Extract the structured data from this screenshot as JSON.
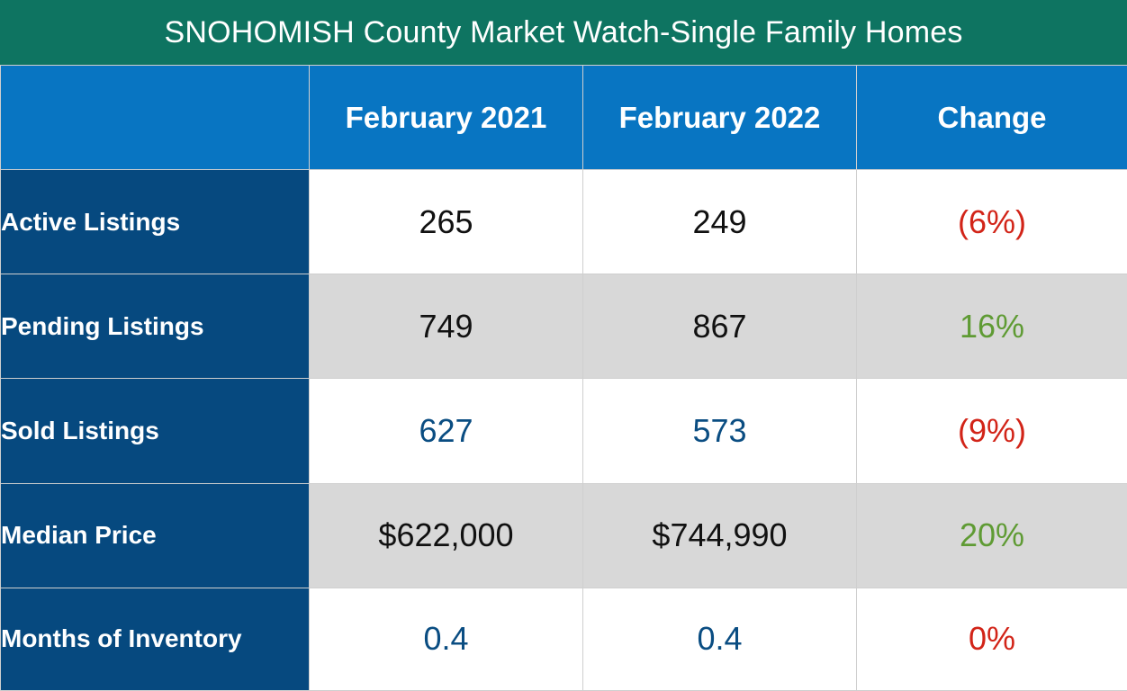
{
  "chart_data": {
    "type": "table",
    "title": "SNOHOMISH County Market Watch-Single Family Homes",
    "columns": [
      "",
      "February 2021",
      "February 2022",
      "Change"
    ],
    "rows": [
      {
        "label": "Active Listings",
        "feb_2021": "265",
        "feb_2022": "249",
        "change": "(6%)"
      },
      {
        "label": "Pending Listings",
        "feb_2021": "749",
        "feb_2022": "867",
        "change": "16%"
      },
      {
        "label": "Sold Listings",
        "feb_2021": "627",
        "feb_2022": "573",
        "change": "(9%)"
      },
      {
        "label": "Median Price",
        "feb_2021": "$622,000",
        "feb_2022": "$744,990",
        "change": "20%"
      },
      {
        "label": "Months of Inventory",
        "feb_2021": "0.4",
        "feb_2022": "0.4",
        "change": "0%"
      }
    ]
  },
  "colors": {
    "title_bg": "#0e7461",
    "header_bg": "#0875c2",
    "row_label_bg": "#06497f",
    "shaded_row": "#d8d8d8",
    "negative": "#d22418",
    "positive": "#5f9b34",
    "blue_value": "#0a4d82"
  }
}
